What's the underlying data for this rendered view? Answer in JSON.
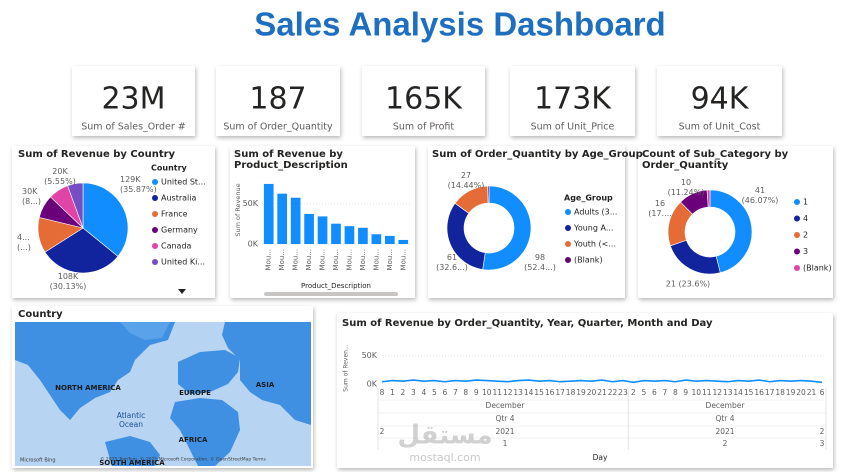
{
  "title": "Sales Analysis Dashboard",
  "kpis": [
    {
      "value": "23M",
      "label": "Sum of Sales_Order #"
    },
    {
      "value": "187",
      "label": "Sum of Order_Quantity"
    },
    {
      "value": "165K",
      "label": "Sum of  Profit"
    },
    {
      "value": "173K",
      "label": "Sum of  Unit_Price"
    },
    {
      "value": "94K",
      "label": "Sum of  Unit_Cost"
    }
  ],
  "chart_data": [
    {
      "type": "pie",
      "title": "Sum of Revenue by Country",
      "legend_title": "Country",
      "categories": [
        "United St...",
        "Australia",
        "France",
        "Germany",
        "Canada",
        "United Ki..."
      ],
      "values": [
        129000,
        108350,
        46000,
        30000,
        26290,
        19960
      ],
      "value_labels": [
        "129K (35.87%)",
        "108K (30.13%)",
        "4... (...)",
        "30K (8...)",
        null,
        "20K (5.55%)"
      ],
      "colors": [
        "#118dff",
        "#12239e",
        "#e66c37",
        "#6b007b",
        "#e044a7",
        "#744ec2"
      ]
    },
    {
      "type": "bar",
      "title": "Sum of Revenue by Product_Description",
      "y_label": "Sum of Revenue",
      "x_label": "Product_Description",
      "categories": [
        "Mou...",
        "Mou...",
        "Mou...",
        "Mou...",
        "Mou...",
        "Mou...",
        "Mou...",
        "Mou...",
        "Mou...",
        "Mou...",
        "Mou..."
      ],
      "values": [
        74000,
        62000,
        57000,
        37000,
        34000,
        25000,
        22000,
        20000,
        12000,
        10000,
        5000
      ],
      "color": "#118dff",
      "ylim": [
        0,
        85000
      ],
      "yticks": [
        {
          "value": 0,
          "label": "0K"
        },
        {
          "value": 50000,
          "label": "50K"
        }
      ],
      "grid": true
    },
    {
      "type": "donut",
      "title": "Sum of Order_Quantity by Age_Group",
      "legend_title": "Age_Group",
      "categories": [
        "Adults (3...",
        "Young A...",
        "Youth (<...",
        "(Blank)"
      ],
      "values": [
        98,
        61,
        27,
        1
      ],
      "value_labels": [
        "98 (52.4...)",
        "61 (32.6...)",
        "27 (14.44%)",
        null
      ],
      "colors": [
        "#118dff",
        "#12239e",
        "#e66c37",
        "#6b007b"
      ]
    },
    {
      "type": "donut",
      "title": "Count of Sub_Category by Order_Quantity",
      "categories": [
        "1",
        "4",
        "2",
        "3",
        "(Blank)"
      ],
      "values": [
        41,
        21,
        16,
        10,
        1
      ],
      "value_labels": [
        "41 (46.07%)",
        "21 (23.6%)",
        "16 (17....",
        "10 (11.24%)",
        null
      ],
      "colors": [
        "#118dff",
        "#12239e",
        "#e66c37",
        "#6b007b",
        "#e044a7"
      ]
    },
    {
      "type": "line",
      "title": "Sum of Revenue by Order_Quantity, Year, Quarter, Month and Day",
      "y_label": "Sum of Reven...",
      "x_label": "Day",
      "categories": [
        "8",
        "1",
        "2",
        "3",
        "4",
        "5",
        "6",
        "7",
        "8",
        "9",
        "10",
        "11",
        "12",
        "13",
        "14",
        "15",
        "16",
        "17",
        "18",
        "19",
        "20",
        "21",
        "22",
        "23",
        "2",
        "5",
        "6",
        "7",
        "8",
        "9",
        "10",
        "11",
        "12",
        "13",
        "14",
        "15",
        "16",
        "17",
        "18",
        "19",
        "20",
        "21",
        "6"
      ],
      "values": [
        4000,
        6000,
        5000,
        7000,
        5000,
        6000,
        4000,
        6000,
        5000,
        7000,
        6000,
        5000,
        4000,
        6000,
        7000,
        5000,
        6000,
        4000,
        5000,
        6000,
        5000,
        7000,
        4000,
        6000,
        3000,
        6000,
        5000,
        6000,
        4000,
        7000,
        5000,
        6000,
        5000,
        4000,
        6000,
        5000,
        7000,
        4000,
        6000,
        5000,
        6000,
        5000,
        3000
      ],
      "color": "#118dff",
      "ylim": [
        0,
        60000
      ],
      "yticks": [
        {
          "value": 0,
          "label": "0K"
        },
        {
          "value": 50000,
          "label": "50K"
        }
      ],
      "grid": true,
      "hierarchy": {
        "month": [
          "December",
          "December"
        ],
        "quarter": [
          "Qtr 4",
          "Qtr 4"
        ],
        "year": [
          "2021",
          "2021"
        ],
        "order_quantity": [
          "1",
          "2"
        ],
        "edge_labels": [
          "2",
          "2",
          "3"
        ]
      }
    }
  ],
  "map": {
    "title": "Country",
    "labels": [
      "NORTH AMERICA",
      "EUROPE",
      "ASIA",
      "Atlantic",
      "Ocean",
      "AFRICA",
      "SOUTH AMERICA"
    ],
    "logo": "Microsoft Bing",
    "attribution": "© 2025 TomTom, © 2025 Microsoft Corporation, © OpenStreetMap Terms"
  },
  "watermark": [
    "مستقل",
    "mostaql.com"
  ]
}
